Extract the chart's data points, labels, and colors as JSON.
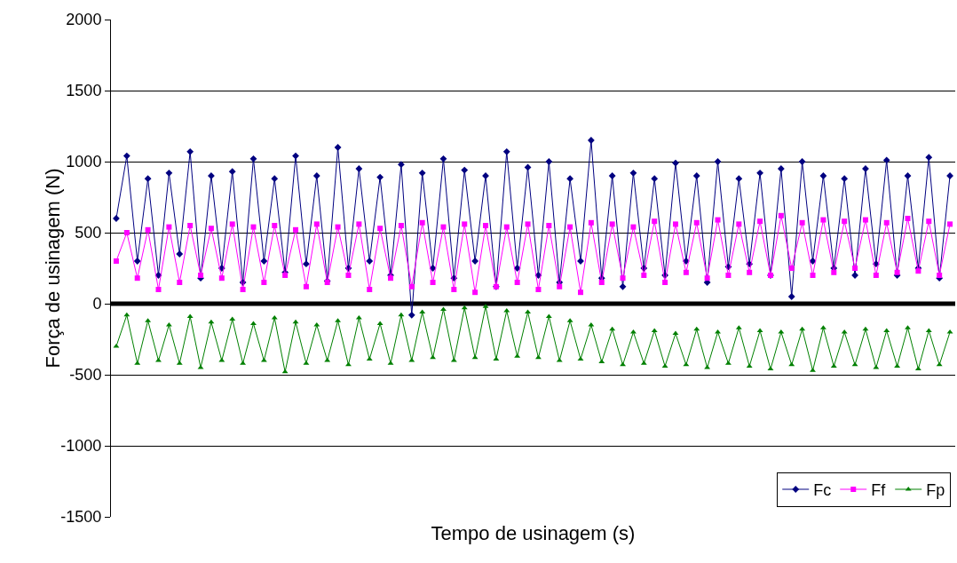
{
  "chart_data": {
    "type": "line",
    "xlabel": "Tempo de usinagem (s)",
    "ylabel": "Força de usinagem (N)",
    "categories": [
      null,
      null,
      null,
      null,
      null,
      null,
      null,
      null,
      null,
      null,
      null,
      null,
      null,
      null,
      null,
      null,
      null,
      null,
      null,
      null,
      null,
      null,
      null,
      null,
      null,
      null,
      null,
      null,
      null,
      null,
      null,
      null,
      null,
      null,
      null,
      null,
      null,
      null,
      null,
      null,
      null,
      null,
      null,
      null,
      null,
      null,
      null,
      null,
      null,
      null,
      null,
      null,
      null,
      null,
      null,
      null,
      null,
      null,
      null,
      null,
      null,
      null,
      null,
      null,
      null,
      null,
      null,
      null,
      null,
      null,
      null,
      null,
      null,
      null,
      null,
      null,
      null,
      null,
      null,
      null
    ],
    "series": [
      {
        "name": "Fc",
        "color": "#000080",
        "marker": "diamond",
        "values": [
          600,
          1040,
          300,
          880,
          200,
          920,
          350,
          1070,
          180,
          900,
          250,
          930,
          150,
          1020,
          300,
          880,
          220,
          1040,
          280,
          900,
          160,
          1100,
          250,
          950,
          300,
          890,
          200,
          980,
          -80,
          920,
          250,
          1020,
          180,
          940,
          300,
          900,
          120,
          1070,
          250,
          960,
          200,
          1000,
          150,
          880,
          300,
          1150,
          180,
          900,
          120,
          920,
          250,
          880,
          200,
          990,
          300,
          900,
          150,
          1000,
          260,
          880,
          280,
          920,
          200,
          950,
          50,
          1000,
          300,
          900,
          250,
          880,
          200,
          950,
          280,
          1010,
          200,
          900,
          250,
          1030,
          180,
          900
        ]
      },
      {
        "name": "Ff",
        "color": "#ff00ff",
        "marker": "square",
        "values": [
          300,
          500,
          180,
          520,
          100,
          540,
          150,
          550,
          200,
          530,
          180,
          560,
          100,
          540,
          150,
          550,
          200,
          520,
          120,
          560,
          150,
          540,
          200,
          560,
          100,
          530,
          180,
          550,
          120,
          570,
          150,
          540,
          100,
          560,
          80,
          550,
          120,
          540,
          150,
          560,
          100,
          550,
          120,
          540,
          80,
          570,
          150,
          560,
          180,
          540,
          200,
          580,
          150,
          560,
          220,
          570,
          180,
          590,
          200,
          560,
          220,
          580,
          200,
          620,
          250,
          570,
          200,
          590,
          220,
          580,
          250,
          590,
          200,
          570,
          220,
          600,
          230,
          580,
          200,
          560
        ]
      },
      {
        "name": "Fp",
        "color": "#008000",
        "marker": "triangle",
        "values": [
          -300,
          -80,
          -420,
          -120,
          -400,
          -150,
          -420,
          -90,
          -450,
          -130,
          -400,
          -110,
          -420,
          -140,
          -400,
          -100,
          -480,
          -130,
          -420,
          -150,
          -400,
          -120,
          -430,
          -100,
          -390,
          -140,
          -420,
          -80,
          -400,
          -60,
          -380,
          -40,
          -400,
          -30,
          -380,
          -20,
          -390,
          -50,
          -370,
          -60,
          -380,
          -90,
          -400,
          -120,
          -390,
          -150,
          -410,
          -180,
          -430,
          -200,
          -420,
          -190,
          -440,
          -210,
          -430,
          -180,
          -450,
          -200,
          -420,
          -170,
          -440,
          -190,
          -460,
          -200,
          -430,
          -180,
          -470,
          -170,
          -440,
          -200,
          -430,
          -180,
          -450,
          -190,
          -440,
          -170,
          -460,
          -190,
          -430,
          -200
        ]
      }
    ],
    "ylim": [
      -1500,
      2000
    ],
    "yticks": [
      -1500,
      -1000,
      -500,
      0,
      500,
      1000,
      1500,
      2000
    ],
    "ref_lines": [
      {
        "axis": "y",
        "value": 0,
        "color": "#000000"
      }
    ],
    "grid": "y",
    "legend": "bottom right",
    "tick_labels": "y",
    "line_style": "solid"
  }
}
